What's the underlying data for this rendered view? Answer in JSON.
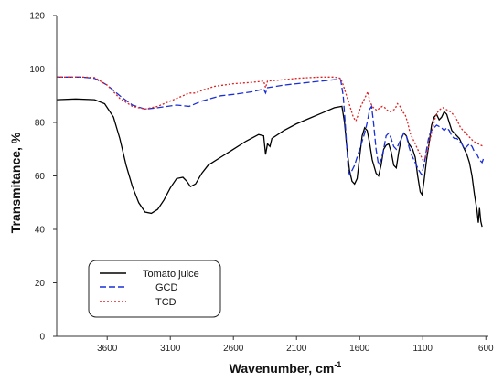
{
  "chart_data": {
    "type": "line",
    "xlabel": "Wavenumber, cm",
    "xlabel_sup": "-1",
    "ylabel": "Transmitance, %",
    "xlim": [
      4000,
      580
    ],
    "ylim": [
      0,
      120
    ],
    "x_reversed": true,
    "xticks": [
      3600,
      3100,
      2600,
      2100,
      1600,
      1100,
      600
    ],
    "yticks": [
      0,
      20,
      40,
      60,
      80,
      100,
      120
    ],
    "grid": false,
    "legend_position": "bottom-left",
    "series": [
      {
        "name": "Tomato juice",
        "color": "#000000",
        "dash": "solid",
        "points": [
          [
            4000,
            88.5
          ],
          [
            3850,
            88.8
          ],
          [
            3700,
            88.5
          ],
          [
            3620,
            87
          ],
          [
            3550,
            82
          ],
          [
            3500,
            74
          ],
          [
            3450,
            64
          ],
          [
            3400,
            56
          ],
          [
            3350,
            50
          ],
          [
            3300,
            46.5
          ],
          [
            3250,
            46
          ],
          [
            3200,
            47.5
          ],
          [
            3150,
            51
          ],
          [
            3100,
            55.5
          ],
          [
            3050,
            59
          ],
          [
            3000,
            59.5
          ],
          [
            2970,
            58
          ],
          [
            2940,
            56
          ],
          [
            2900,
            57
          ],
          [
            2850,
            61
          ],
          [
            2800,
            64
          ],
          [
            2700,
            67
          ],
          [
            2600,
            70
          ],
          [
            2500,
            73
          ],
          [
            2400,
            75.5
          ],
          [
            2360,
            75
          ],
          [
            2345,
            68
          ],
          [
            2330,
            72
          ],
          [
            2310,
            71
          ],
          [
            2295,
            74
          ],
          [
            2200,
            77
          ],
          [
            2100,
            79.5
          ],
          [
            2000,
            81.5
          ],
          [
            1900,
            83.5
          ],
          [
            1800,
            85.5
          ],
          [
            1740,
            86
          ],
          [
            1720,
            80
          ],
          [
            1700,
            70
          ],
          [
            1680,
            62
          ],
          [
            1660,
            58
          ],
          [
            1640,
            57
          ],
          [
            1620,
            59
          ],
          [
            1600,
            67
          ],
          [
            1580,
            75
          ],
          [
            1560,
            78
          ],
          [
            1540,
            77
          ],
          [
            1520,
            72
          ],
          [
            1500,
            66
          ],
          [
            1470,
            61
          ],
          [
            1450,
            60
          ],
          [
            1430,
            64
          ],
          [
            1410,
            70
          ],
          [
            1390,
            71.5
          ],
          [
            1370,
            72
          ],
          [
            1350,
            69
          ],
          [
            1330,
            64
          ],
          [
            1310,
            63
          ],
          [
            1290,
            69
          ],
          [
            1270,
            74
          ],
          [
            1250,
            76
          ],
          [
            1230,
            75
          ],
          [
            1210,
            72
          ],
          [
            1180,
            70
          ],
          [
            1160,
            67
          ],
          [
            1140,
            60
          ],
          [
            1120,
            54
          ],
          [
            1105,
            53
          ],
          [
            1090,
            58
          ],
          [
            1070,
            66
          ],
          [
            1050,
            72
          ],
          [
            1030,
            79
          ],
          [
            1010,
            82
          ],
          [
            990,
            83
          ],
          [
            970,
            81
          ],
          [
            950,
            82
          ],
          [
            930,
            84
          ],
          [
            910,
            83
          ],
          [
            890,
            80
          ],
          [
            870,
            77
          ],
          [
            850,
            76
          ],
          [
            830,
            75
          ],
          [
            810,
            74
          ],
          [
            790,
            72
          ],
          [
            770,
            70
          ],
          [
            750,
            68
          ],
          [
            730,
            65
          ],
          [
            710,
            60
          ],
          [
            690,
            53
          ],
          [
            670,
            47
          ],
          [
            660,
            42.5
          ],
          [
            650,
            48
          ],
          [
            640,
            43
          ],
          [
            630,
            41
          ]
        ]
      },
      {
        "name": "GCD",
        "color": "#1a2fd6",
        "dash": "dashed",
        "points": [
          [
            4000,
            97
          ],
          [
            3800,
            97
          ],
          [
            3700,
            96.5
          ],
          [
            3600,
            94
          ],
          [
            3500,
            90
          ],
          [
            3400,
            86.5
          ],
          [
            3300,
            85
          ],
          [
            3200,
            85.5
          ],
          [
            3050,
            86.5
          ],
          [
            2950,
            86
          ],
          [
            2850,
            88
          ],
          [
            2700,
            90
          ],
          [
            2600,
            90.5
          ],
          [
            2450,
            91.5
          ],
          [
            2360,
            92.5
          ],
          [
            2345,
            91
          ],
          [
            2330,
            93
          ],
          [
            2200,
            94
          ],
          [
            2100,
            94.5
          ],
          [
            2000,
            95
          ],
          [
            1900,
            95.5
          ],
          [
            1800,
            96
          ],
          [
            1750,
            96
          ],
          [
            1730,
            90
          ],
          [
            1715,
            80
          ],
          [
            1700,
            70
          ],
          [
            1690,
            62
          ],
          [
            1680,
            60.5
          ],
          [
            1660,
            62
          ],
          [
            1640,
            64
          ],
          [
            1620,
            67
          ],
          [
            1600,
            70
          ],
          [
            1580,
            73
          ],
          [
            1560,
            76
          ],
          [
            1540,
            80
          ],
          [
            1520,
            85
          ],
          [
            1505,
            86
          ],
          [
            1490,
            80
          ],
          [
            1470,
            70
          ],
          [
            1450,
            64
          ],
          [
            1430,
            66
          ],
          [
            1410,
            70
          ],
          [
            1390,
            75
          ],
          [
            1370,
            76
          ],
          [
            1350,
            74
          ],
          [
            1330,
            71
          ],
          [
            1310,
            70
          ],
          [
            1290,
            72
          ],
          [
            1270,
            74
          ],
          [
            1250,
            76
          ],
          [
            1230,
            75
          ],
          [
            1210,
            71
          ],
          [
            1190,
            68
          ],
          [
            1170,
            66
          ],
          [
            1150,
            64
          ],
          [
            1130,
            62
          ],
          [
            1110,
            60.5
          ],
          [
            1090,
            64
          ],
          [
            1070,
            70
          ],
          [
            1050,
            75
          ],
          [
            1030,
            77
          ],
          [
            1010,
            78
          ],
          [
            990,
            79
          ],
          [
            970,
            78.5
          ],
          [
            950,
            78
          ],
          [
            930,
            77
          ],
          [
            910,
            78
          ],
          [
            890,
            77
          ],
          [
            870,
            75
          ],
          [
            850,
            74
          ],
          [
            830,
            74
          ],
          [
            810,
            73
          ],
          [
            790,
            72
          ],
          [
            770,
            70
          ],
          [
            750,
            71
          ],
          [
            730,
            72
          ],
          [
            710,
            71
          ],
          [
            690,
            69
          ],
          [
            670,
            68
          ],
          [
            650,
            66
          ],
          [
            630,
            65
          ],
          [
            615,
            67
          ]
        ]
      },
      {
        "name": "TCD",
        "color": "#e02020",
        "dash": "dotted",
        "points": [
          [
            4000,
            97
          ],
          [
            3800,
            97
          ],
          [
            3700,
            96.8
          ],
          [
            3600,
            94
          ],
          [
            3500,
            89
          ],
          [
            3400,
            86
          ],
          [
            3300,
            85
          ],
          [
            3200,
            86
          ],
          [
            3100,
            88
          ],
          [
            3000,
            90
          ],
          [
            2950,
            91
          ],
          [
            2900,
            91
          ],
          [
            2850,
            92
          ],
          [
            2750,
            93.5
          ],
          [
            2600,
            94.5
          ],
          [
            2450,
            95
          ],
          [
            2360,
            95.5
          ],
          [
            2345,
            93
          ],
          [
            2330,
            95.5
          ],
          [
            2200,
            96
          ],
          [
            2100,
            96.5
          ],
          [
            2000,
            96.8
          ],
          [
            1900,
            97
          ],
          [
            1800,
            97
          ],
          [
            1750,
            96.5
          ],
          [
            1730,
            94
          ],
          [
            1710,
            91
          ],
          [
            1690,
            88
          ],
          [
            1670,
            85
          ],
          [
            1650,
            82
          ],
          [
            1630,
            80.5
          ],
          [
            1610,
            83
          ],
          [
            1590,
            86
          ],
          [
            1570,
            88
          ],
          [
            1550,
            90
          ],
          [
            1535,
            91.5
          ],
          [
            1520,
            88
          ],
          [
            1500,
            86
          ],
          [
            1480,
            85
          ],
          [
            1460,
            84.5
          ],
          [
            1440,
            85.5
          ],
          [
            1420,
            86
          ],
          [
            1400,
            85.5
          ],
          [
            1380,
            84.5
          ],
          [
            1360,
            84
          ],
          [
            1340,
            84.5
          ],
          [
            1320,
            85
          ],
          [
            1300,
            87
          ],
          [
            1280,
            86
          ],
          [
            1260,
            84
          ],
          [
            1240,
            83
          ],
          [
            1220,
            80
          ],
          [
            1200,
            76
          ],
          [
            1180,
            74
          ],
          [
            1160,
            72
          ],
          [
            1140,
            70
          ],
          [
            1120,
            68
          ],
          [
            1100,
            66
          ],
          [
            1080,
            66.5
          ],
          [
            1060,
            70
          ],
          [
            1040,
            74
          ],
          [
            1020,
            78
          ],
          [
            1000,
            82
          ],
          [
            980,
            84
          ],
          [
            960,
            85
          ],
          [
            940,
            85.5
          ],
          [
            920,
            85
          ],
          [
            900,
            84.5
          ],
          [
            880,
            84
          ],
          [
            860,
            83
          ],
          [
            840,
            82
          ],
          [
            820,
            80
          ],
          [
            800,
            78
          ],
          [
            780,
            77
          ],
          [
            760,
            76
          ],
          [
            740,
            75
          ],
          [
            720,
            74
          ],
          [
            700,
            73
          ],
          [
            680,
            72.5
          ],
          [
            660,
            72
          ],
          [
            640,
            71.5
          ],
          [
            615,
            71
          ]
        ]
      }
    ]
  }
}
